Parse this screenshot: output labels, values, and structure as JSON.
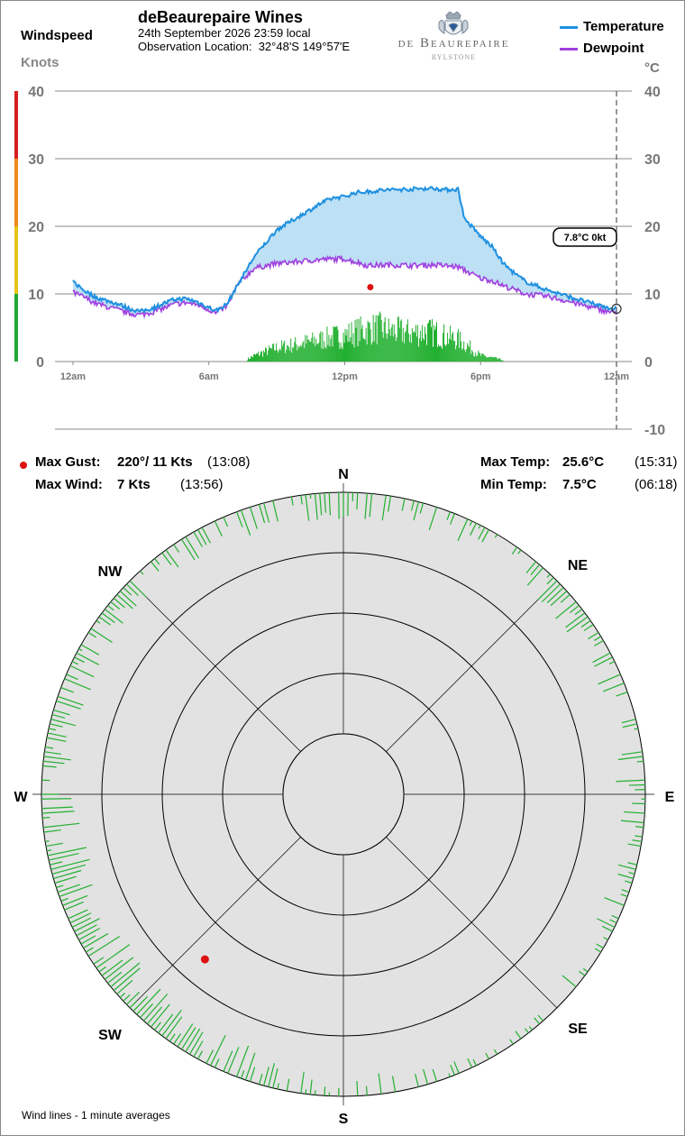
{
  "header": {
    "left_title": "Windspeed",
    "left_units": "Knots",
    "station_name": "deBeaurepaire Wines",
    "datetime": "24th September 2026  23:59 local",
    "location_label": "Observation Location:",
    "location_value": "32°48'S 149°57'E",
    "logo_line1": "de Beaurepaire",
    "logo_line2": "RYLSTONE",
    "right_units": "°C"
  },
  "legend": {
    "temperature_label": "Temperature",
    "dewpoint_label": "Dewpoint"
  },
  "colors": {
    "temperature": "#1e90e0",
    "dewpoint": "#a040e0",
    "fill": "#bde0f5",
    "wind": "#22b030",
    "gust": "#dd1111",
    "rose_bg": "#e2e2e2",
    "scale_red": "#d62020",
    "scale_orange": "#ef8a20",
    "scale_yellow": "#e8c419",
    "scale_green": "#22a838"
  },
  "current_readout": "7.8°C  0kt",
  "stats": {
    "max_gust_label": "Max Gust:",
    "max_gust_value": "220°/  11 Kts",
    "max_gust_time": "(13:08)",
    "max_wind_label": "Max Wind:",
    "max_wind_value": "7 Kts",
    "max_wind_time": "(13:56)",
    "max_temp_label": "Max Temp:",
    "max_temp_value": "25.6°C",
    "max_temp_time": "(15:31)",
    "min_temp_label": "Min Temp:",
    "min_temp_value": "7.5°C",
    "min_temp_time": "(06:18)"
  },
  "compass": [
    "N",
    "NE",
    "E",
    "SE",
    "S",
    "SW",
    "W",
    "NW"
  ],
  "footer_note": "Wind lines - 1 minute averages",
  "chart_data": {
    "type": "line",
    "x_tick_labels": [
      "12am",
      "6am",
      "12pm",
      "6pm",
      "12am"
    ],
    "x_ticks_hours": [
      0,
      6,
      12,
      18,
      24
    ],
    "wind_axis": {
      "ylim": [
        0,
        40
      ],
      "ticks": [
        0,
        10,
        20,
        30,
        40
      ]
    },
    "temp_axis": {
      "ylim": [
        -10,
        40
      ],
      "ticks": [
        -10,
        0,
        10,
        20,
        30,
        40
      ]
    },
    "temperature": {
      "name": "Temperature",
      "hours": [
        0,
        0.5,
        1,
        1.5,
        2,
        2.5,
        3,
        3.5,
        4,
        4.5,
        5,
        5.5,
        6,
        6.3,
        6.8,
        7.3,
        8,
        8.5,
        9,
        9.5,
        10,
        10.5,
        11,
        11.5,
        12,
        12.5,
        13,
        13.5,
        14,
        15,
        15.5,
        16,
        16.5,
        17,
        17.3,
        17.6,
        18,
        18.5,
        19,
        19.5,
        20,
        21,
        22,
        23,
        23.9
      ],
      "values": [
        11.8,
        10.5,
        9.5,
        9.0,
        8.5,
        7.8,
        7.4,
        7.9,
        8.6,
        9.2,
        9.3,
        8.8,
        8.0,
        7.5,
        8.5,
        11.5,
        15.5,
        17.5,
        19.5,
        20.5,
        21.5,
        22.5,
        23.5,
        24.2,
        24.4,
        25.0,
        25.1,
        25.3,
        25.4,
        25.5,
        25.6,
        25.6,
        25.4,
        25.5,
        21.0,
        20.0,
        18.5,
        17.0,
        14.5,
        13.0,
        11.8,
        10.5,
        9.5,
        8.5,
        7.8
      ]
    },
    "dewpoint": {
      "name": "Dewpoint",
      "hours": [
        0,
        0.5,
        1,
        1.5,
        2,
        2.5,
        3,
        3.5,
        4,
        4.5,
        5,
        5.5,
        6,
        6.3,
        6.8,
        7.3,
        8,
        9,
        10,
        11,
        12,
        13,
        14,
        15,
        16,
        17,
        18,
        18.5,
        19,
        20,
        21,
        22,
        23,
        23.9
      ],
      "values": [
        10.2,
        9.5,
        8.6,
        8.1,
        7.6,
        7.1,
        6.9,
        7.3,
        7.9,
        8.5,
        8.7,
        8.4,
        7.7,
        7.1,
        8.2,
        11.5,
        13.8,
        14.5,
        14.8,
        15.1,
        15.2,
        14.2,
        14.3,
        14.2,
        14.3,
        14.0,
        12.3,
        12.0,
        11.2,
        10.0,
        9.6,
        8.8,
        7.9,
        7.2
      ]
    },
    "wind_envelope": {
      "name": "Windspeed",
      "hours": [
        7.7,
        8,
        8.5,
        9,
        9.5,
        10,
        10.5,
        11,
        11.5,
        12,
        12.5,
        13,
        13.5,
        14,
        14.5,
        15,
        15.5,
        16,
        16.5,
        17,
        17.5,
        18,
        18.5,
        19
      ],
      "values": [
        0.5,
        1.2,
        2.0,
        2.8,
        3.2,
        3.6,
        4.0,
        4.5,
        5.0,
        5.3,
        6.0,
        6.5,
        6.8,
        6.2,
        6.0,
        5.8,
        6.1,
        5.8,
        5.0,
        4.5,
        3.0,
        1.2,
        0.8,
        0.3
      ]
    },
    "max_gust": {
      "hour": 13.13,
      "knots": 11,
      "direction_deg": 220
    },
    "current": {
      "hour": 24,
      "temperature": 7.8,
      "wind_knots": 0
    }
  },
  "wind_rose": {
    "max_gust_direction_deg": 220,
    "max_gust_knots": 11,
    "ring_count": 5,
    "direction_density": [
      0.55,
      0.55,
      0.5,
      0.55,
      0.55,
      0.55,
      0.6,
      0.6,
      0.6,
      0.55,
      0.45,
      0.35,
      0.25,
      0.15,
      0.1,
      0.1,
      0.15,
      0.3,
      0.45,
      0.6,
      0.75,
      0.95,
      1.0,
      1.0,
      1.0,
      0.95,
      0.85,
      0.75,
      0.7,
      0.6,
      0.55,
      0.5,
      0.45,
      0.45,
      0.5,
      0.55
    ]
  }
}
